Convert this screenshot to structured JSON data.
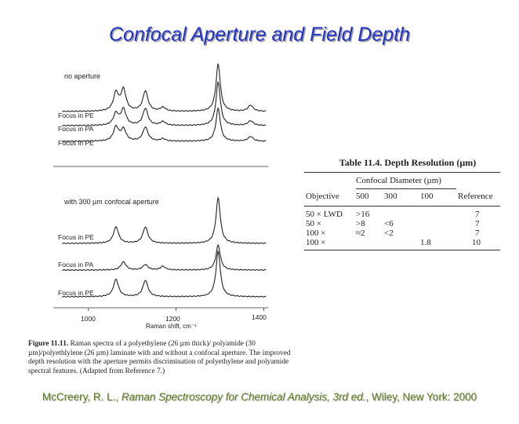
{
  "slide": {
    "title": "Confocal Aperture and Field Depth",
    "citation_authors": "McCreery, R. L., ",
    "citation_book": "Raman Spectroscopy for Chemical Analysis, 3rd ed.",
    "citation_publisher": ", Wiley, New York: 2000"
  },
  "figure": {
    "panel_top_label": "no aperture",
    "panel_bottom_label": "with 300 µm confocal aperture",
    "top_traces": [
      "Focus in PE",
      "Focus in PA",
      "Focus in PE"
    ],
    "bottom_traces": [
      "Focus in PE",
      "Focus in PA",
      "Focus in PE"
    ],
    "x_ticks": [
      "1000",
      "1200",
      "1400"
    ],
    "x_label": "Raman shift, cm⁻¹",
    "caption_label": "Figure 11.11.",
    "caption_text": "Raman spectra of a polyethylene (26 µm thick)/ polyamide (30 µm)/polyethlylene (26 µm) laminate with and without a confocal aperture. The improved depth resolution with the aperture permits discrimination of polyethylene and polyamide spectral features. (Adapted from Reference 7.)"
  },
  "chart_data": {
    "type": "line",
    "x_ticks": [
      1000,
      1200,
      1400
    ],
    "xlabel": "Raman shift, cm⁻¹",
    "xlim": [
      920,
      1410
    ],
    "panels": [
      {
        "title": "no aperture",
        "series": [
          {
            "name": "Focus in PE",
            "peaks": [
              [
                1063,
                0.38
              ],
              [
                1080,
                0.45
              ],
              [
                1130,
                0.43
              ],
              [
                1170,
                0.08
              ],
              [
                1296,
                1.0
              ],
              [
                1370,
                0.13
              ]
            ]
          },
          {
            "name": "Focus in PA",
            "peaks": [
              [
                1063,
                0.25
              ],
              [
                1080,
                0.34
              ],
              [
                1130,
                0.36
              ],
              [
                1170,
                0.08
              ],
              [
                1296,
                0.92
              ],
              [
                1370,
                0.1
              ]
            ]
          },
          {
            "name": "Focus in PE",
            "peaks": [
              [
                1063,
                0.3
              ],
              [
                1080,
                0.25
              ],
              [
                1130,
                0.3
              ],
              [
                1170,
                0.05
              ],
              [
                1296,
                0.7
              ],
              [
                1370,
                0.1
              ]
            ]
          }
        ]
      },
      {
        "title": "with 300 µm confocal aperture",
        "series": [
          {
            "name": "Focus in PE",
            "peaks": [
              [
                1063,
                0.36
              ],
              [
                1130,
                0.36
              ],
              [
                1296,
                1.0
              ]
            ]
          },
          {
            "name": "Focus in PA",
            "peaks": [
              [
                1080,
                0.18
              ],
              [
                1130,
                0.12
              ],
              [
                1170,
                0.08
              ],
              [
                1296,
                0.55
              ]
            ]
          },
          {
            "name": "Focus in PE",
            "peaks": [
              [
                1063,
                0.38
              ],
              [
                1130,
                0.36
              ],
              [
                1296,
                1.0
              ]
            ]
          }
        ]
      }
    ]
  },
  "table": {
    "caption": "Table 11.4. Depth Resolution (µm)",
    "group_header": "Confocal Diameter (µm)",
    "headers": [
      "Objective",
      "500",
      "300",
      "100",
      "Reference"
    ],
    "rows": [
      [
        "50 × LWD",
        ">16",
        "",
        "",
        "7"
      ],
      [
        "50 ×",
        ">8",
        "<6",
        "",
        "7"
      ],
      [
        "100 ×",
        "≈2",
        "<2",
        "",
        "7"
      ],
      [
        "100 ×",
        "",
        "",
        "1.8",
        "10"
      ]
    ]
  }
}
